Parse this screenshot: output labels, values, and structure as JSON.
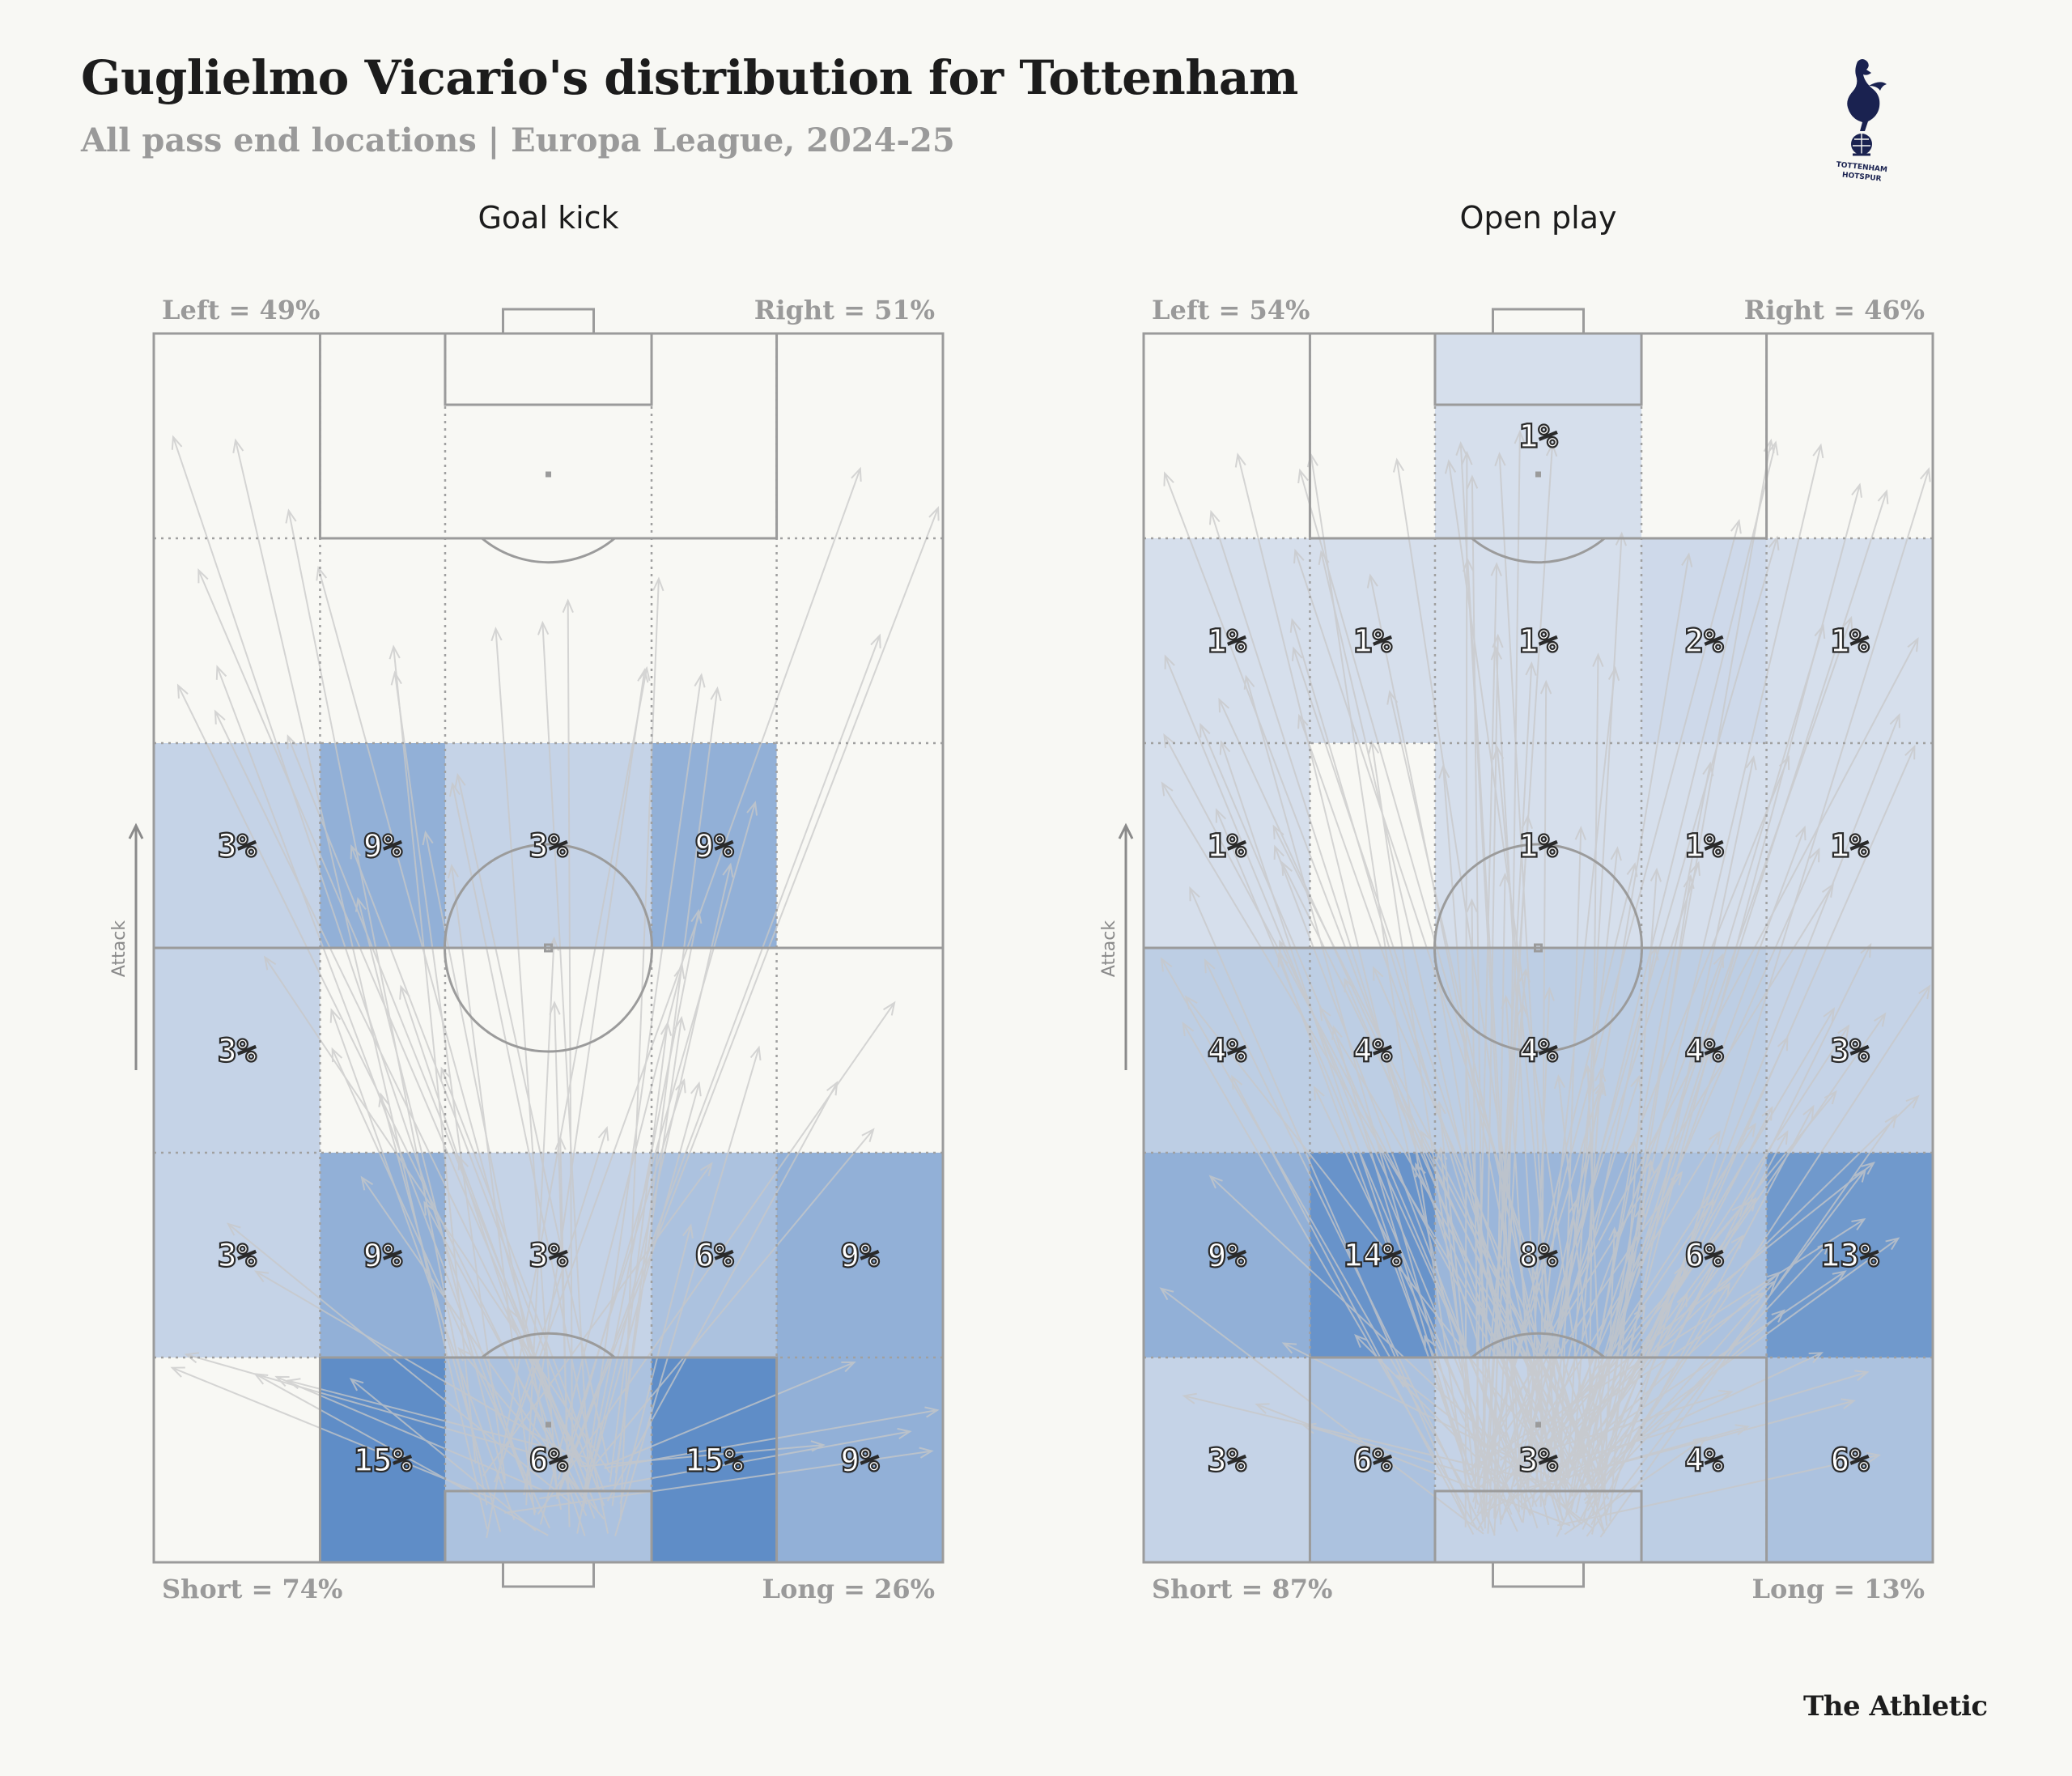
{
  "header": {
    "title": "Guglielmo Vicario's distribution for Tottenham",
    "subtitle": "All pass end locations | Europa League, 2024-25",
    "club_logo": "tottenham-hotspur-crest",
    "logo_text_1": "TOTTENHAM",
    "logo_text_2": "HOTSPUR",
    "credit": "The Athletic"
  },
  "colors": {
    "background": "#f8f8f4",
    "zone_base": "#dfe5ef",
    "zone_max": "#5f8dc7",
    "pitch_line": "#9b9b9b",
    "arrow": "#c8c8c8"
  },
  "chart_data": [
    {
      "type": "heatmap",
      "title": "Goal kick",
      "attack_label": "Attack",
      "left_label": "Left = 49%",
      "right_label": "Right = 51%",
      "short_label": "Short = 74%",
      "long_label": "Long = 26%",
      "rows_top_to_bottom": [
        [
          null,
          null,
          null,
          null,
          null
        ],
        [
          null,
          null,
          null,
          null,
          null
        ],
        [
          3,
          9,
          3,
          9,
          null
        ],
        [
          3,
          null,
          null,
          null,
          null
        ],
        [
          3,
          9,
          3,
          6,
          9
        ],
        [
          null,
          15,
          6,
          15,
          9
        ]
      ],
      "labels_top_to_bottom": [
        [
          "",
          "",
          "",
          "",
          ""
        ],
        [
          "",
          "",
          "",
          "",
          ""
        ],
        [
          "3%",
          "9%",
          "3%",
          "9%",
          ""
        ],
        [
          "3%",
          "",
          "",
          "",
          ""
        ],
        [
          "3%",
          "9%",
          "3%",
          "6%",
          "9%"
        ],
        [
          "",
          "15%",
          "6%",
          "15%",
          "9%"
        ]
      ]
    },
    {
      "type": "heatmap",
      "title": "Open play",
      "attack_label": "Attack",
      "left_label": "Left = 54%",
      "right_label": "Right = 46%",
      "short_label": "Short = 87%",
      "long_label": "Long = 13%",
      "rows_top_to_bottom": [
        [
          null,
          null,
          1,
          null,
          null
        ],
        [
          1,
          1,
          1,
          2,
          1
        ],
        [
          1,
          null,
          1,
          1,
          1
        ],
        [
          4,
          4,
          4,
          4,
          3
        ],
        [
          9,
          14,
          8,
          6,
          13
        ],
        [
          3,
          6,
          3,
          4,
          6
        ]
      ],
      "labels_top_to_bottom": [
        [
          "",
          "",
          "1%",
          "",
          ""
        ],
        [
          "1%",
          "1%",
          "1%",
          "2%",
          "1%"
        ],
        [
          "1%",
          "",
          "1%",
          "1%",
          "1%"
        ],
        [
          "4%",
          "4%",
          "4%",
          "4%",
          "3%"
        ],
        [
          "9%",
          "14%",
          "8%",
          "6%",
          "13%"
        ],
        [
          "3%",
          "6%",
          "3%",
          "4%",
          "6%"
        ]
      ]
    }
  ]
}
